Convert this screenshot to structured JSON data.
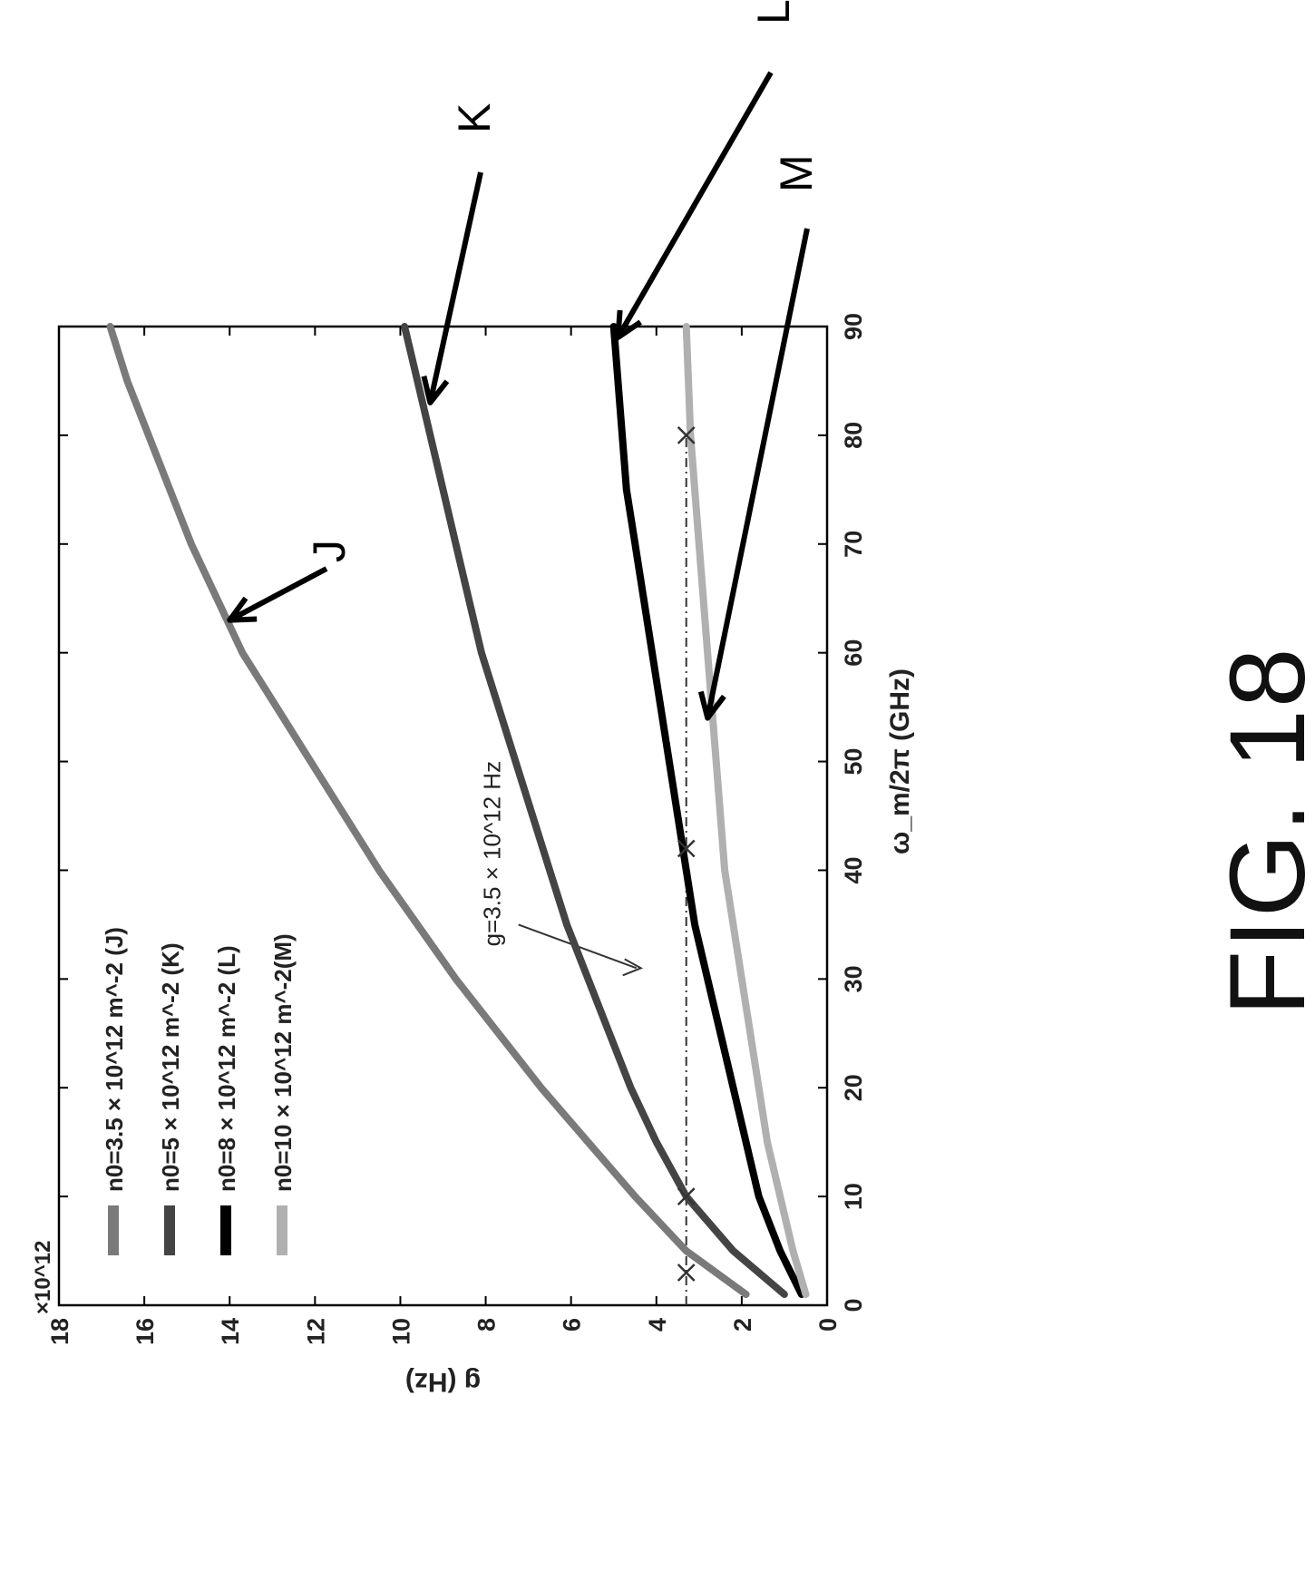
{
  "figure_label": "FIG. 18",
  "chart_data": {
    "type": "line",
    "xlabel": "ω_m/2π (GHz)",
    "ylabel": "g (Hz)",
    "y_multiplier": "×10^12",
    "xlim": [
      0,
      90
    ],
    "ylim": [
      0,
      18
    ],
    "x_ticks": [
      "0",
      "10",
      "20",
      "30",
      "40",
      "50",
      "60",
      "70",
      "80",
      "90"
    ],
    "y_ticks": [
      "0",
      "2",
      "4",
      "6",
      "8",
      "10",
      "12",
      "14",
      "16",
      "18"
    ],
    "grid": false,
    "legend_position": "top-left",
    "series": [
      {
        "name": "n0=3.5 × 10^12 m^-2 (J)",
        "label": "J",
        "color": "#7a7a7a",
        "x": [
          1,
          5,
          10,
          15,
          20,
          25,
          30,
          35,
          40,
          45,
          50,
          55,
          60,
          65,
          70,
          75,
          80,
          85,
          90
        ],
        "y": [
          1.9,
          3.3,
          4.5,
          5.6,
          6.7,
          7.7,
          8.7,
          9.6,
          10.5,
          11.3,
          12.1,
          12.9,
          13.7,
          14.3,
          14.9,
          15.4,
          15.9,
          16.4,
          16.8
        ]
      },
      {
        "name": "n0=5 × 10^12 m^-2 (K)",
        "label": "K",
        "color": "#444444",
        "x": [
          1,
          5,
          10,
          15,
          20,
          25,
          30,
          35,
          40,
          45,
          50,
          55,
          60,
          65,
          70,
          75,
          80,
          85,
          90
        ],
        "y": [
          1.0,
          2.2,
          3.3,
          4.0,
          4.6,
          5.1,
          5.6,
          6.1,
          6.5,
          6.9,
          7.3,
          7.7,
          8.1,
          8.4,
          8.7,
          9.0,
          9.3,
          9.6,
          9.9
        ]
      },
      {
        "name": "n0=8 × 10^12 m^-2 (L)",
        "label": "L",
        "color": "#000000",
        "x": [
          1,
          5,
          10,
          15,
          20,
          25,
          30,
          35,
          40,
          45,
          50,
          55,
          60,
          65,
          70,
          75,
          80,
          85,
          90
        ],
        "y": [
          0.6,
          1.1,
          1.6,
          1.9,
          2.2,
          2.5,
          2.8,
          3.1,
          3.3,
          3.5,
          3.7,
          3.9,
          4.1,
          4.3,
          4.5,
          4.7,
          4.8,
          4.9,
          5.0
        ]
      },
      {
        "name": "n0=10 × 10^12 m^-2(M)",
        "label": "M",
        "color": "#b0b0b0",
        "x": [
          1,
          5,
          10,
          15,
          20,
          25,
          30,
          35,
          40,
          45,
          50,
          55,
          60,
          65,
          70,
          75,
          80,
          85,
          90
        ],
        "y": [
          0.5,
          0.8,
          1.1,
          1.4,
          1.6,
          1.8,
          2.0,
          2.2,
          2.4,
          2.5,
          2.6,
          2.7,
          2.8,
          2.9,
          3.0,
          3.1,
          3.2,
          3.25,
          3.3
        ]
      }
    ],
    "reference_line": {
      "y": 3.3,
      "label": "g=3.5 × 10^12 Hz"
    },
    "markers": [
      {
        "x": 3,
        "y": 3.3
      },
      {
        "x": 10,
        "y": 3.3
      },
      {
        "x": 42,
        "y": 3.3
      },
      {
        "x": 80,
        "y": 3.3
      }
    ]
  }
}
